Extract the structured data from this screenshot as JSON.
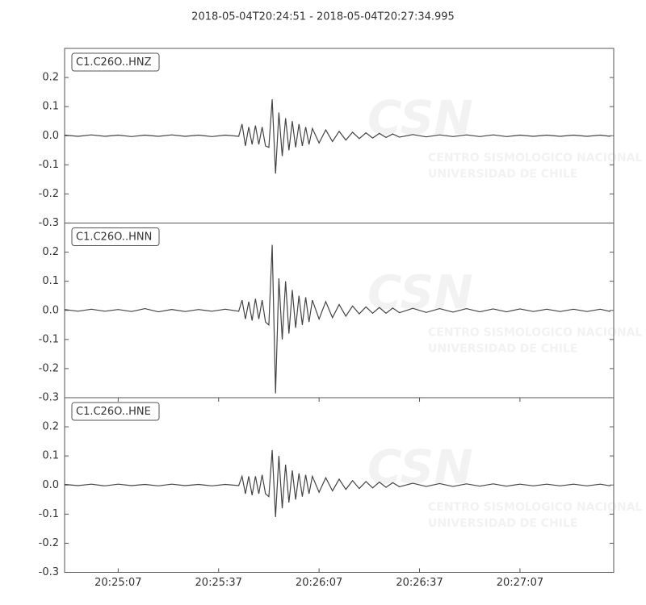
{
  "title": "2018-05-04T20:24:51  -  2018-05-04T20:27:34.995",
  "watermark": {
    "logo": "CSN",
    "lines": [
      "CENTRO SISMOLOGICO NACIONAL",
      "UNIVERSIDAD DE CHILE"
    ]
  },
  "chart_data": [
    {
      "type": "line",
      "label": "C1.C26O..HNZ",
      "color": "#444444",
      "x": [
        "20:24:51",
        "20:24:55",
        "20:24:59",
        "20:25:03",
        "20:25:07",
        "20:25:11",
        "20:25:15",
        "20:25:19",
        "20:25:23",
        "20:25:27",
        "20:25:31",
        "20:25:35",
        "20:25:39",
        "20:25:43",
        "20:25:44",
        "20:25:45",
        "20:25:46",
        "20:25:47",
        "20:25:48",
        "20:25:49",
        "20:25:50",
        "20:25:51",
        "20:25:52",
        "20:25:53",
        "20:25:54",
        "20:25:55",
        "20:25:56",
        "20:25:57",
        "20:25:58",
        "20:25:59",
        "20:26:00",
        "20:26:01",
        "20:26:02",
        "20:26:03",
        "20:26:04",
        "20:26:05",
        "20:26:07",
        "20:26:09",
        "20:26:11",
        "20:26:13",
        "20:26:15",
        "20:26:17",
        "20:26:19",
        "20:26:21",
        "20:26:23",
        "20:26:25",
        "20:26:27",
        "20:26:29",
        "20:26:31",
        "20:26:35",
        "20:26:39",
        "20:26:43",
        "20:26:47",
        "20:26:51",
        "20:26:55",
        "20:26:59",
        "20:27:03",
        "20:27:07",
        "20:27:11",
        "20:27:15",
        "20:27:19",
        "20:27:23",
        "20:27:27",
        "20:27:31",
        "20:27:34"
      ],
      "values": [
        0.002,
        -0.002,
        0.003,
        -0.002,
        0.002,
        -0.003,
        0.002,
        -0.002,
        0.003,
        -0.002,
        0.002,
        -0.003,
        0.002,
        -0.002,
        0.04,
        -0.035,
        0.03,
        -0.03,
        0.035,
        -0.03,
        0.03,
        -0.035,
        -0.04,
        0.125,
        -0.13,
        0.08,
        -0.07,
        0.06,
        -0.05,
        0.05,
        -0.04,
        0.04,
        -0.035,
        0.03,
        -0.03,
        0.025,
        -0.025,
        0.02,
        -0.02,
        0.015,
        -0.015,
        0.012,
        -0.01,
        0.01,
        -0.008,
        0.008,
        -0.006,
        0.006,
        -0.005,
        0.004,
        -0.004,
        0.003,
        -0.003,
        0.003,
        -0.003,
        0.003,
        -0.003,
        0.002,
        -0.002,
        0.002,
        -0.002,
        0.002,
        -0.002,
        0.002,
        -0.002
      ],
      "xlim": [
        "20:24:51",
        "20:27:34.995"
      ],
      "ylim": [
        -0.3,
        0.3
      ],
      "yticks": [
        -0.3,
        -0.2,
        -0.1,
        {
          "value": 0,
          "label": "0.0"
        },
        0.1,
        0.2
      ]
    },
    {
      "type": "line",
      "label": "C1.C26O..HNN",
      "color": "#444444",
      "x": [
        "20:24:51",
        "20:24:55",
        "20:24:59",
        "20:25:03",
        "20:25:07",
        "20:25:11",
        "20:25:15",
        "20:25:19",
        "20:25:23",
        "20:25:27",
        "20:25:31",
        "20:25:35",
        "20:25:39",
        "20:25:43",
        "20:25:44",
        "20:25:45",
        "20:25:46",
        "20:25:47",
        "20:25:48",
        "20:25:49",
        "20:25:50",
        "20:25:51",
        "20:25:52",
        "20:25:53",
        "20:25:54",
        "20:25:55",
        "20:25:56",
        "20:25:57",
        "20:25:58",
        "20:25:59",
        "20:26:00",
        "20:26:01",
        "20:26:02",
        "20:26:03",
        "20:26:04",
        "20:26:05",
        "20:26:07",
        "20:26:09",
        "20:26:11",
        "20:26:13",
        "20:26:15",
        "20:26:17",
        "20:26:19",
        "20:26:21",
        "20:26:23",
        "20:26:25",
        "20:26:27",
        "20:26:29",
        "20:26:31",
        "20:26:35",
        "20:26:39",
        "20:26:43",
        "20:26:47",
        "20:26:51",
        "20:26:55",
        "20:26:59",
        "20:27:03",
        "20:27:07",
        "20:27:11",
        "20:27:15",
        "20:27:19",
        "20:27:23",
        "20:27:27",
        "20:27:31",
        "20:27:34"
      ],
      "values": [
        0.003,
        -0.003,
        0.004,
        -0.003,
        0.003,
        -0.004,
        0.006,
        -0.005,
        0.003,
        -0.004,
        0.003,
        -0.003,
        0.004,
        -0.003,
        0.035,
        -0.03,
        0.03,
        -0.035,
        0.04,
        -0.03,
        0.035,
        -0.04,
        -0.05,
        0.225,
        -0.285,
        0.11,
        -0.1,
        0.1,
        -0.08,
        0.07,
        -0.06,
        0.05,
        -0.05,
        0.045,
        -0.04,
        0.035,
        -0.03,
        0.03,
        -0.025,
        0.02,
        -0.02,
        0.015,
        -0.012,
        0.012,
        -0.01,
        0.01,
        -0.01,
        0.008,
        -0.008,
        0.007,
        -0.007,
        0.006,
        -0.006,
        0.006,
        -0.005,
        0.005,
        -0.005,
        0.005,
        -0.004,
        0.004,
        -0.004,
        0.004,
        -0.004,
        0.004,
        -0.004
      ],
      "xlim": [
        "20:24:51",
        "20:27:34.995"
      ],
      "ylim": [
        -0.3,
        0.3
      ],
      "yticks": [
        -0.3,
        -0.2,
        -0.1,
        {
          "value": 0,
          "label": "0.0"
        },
        0.1,
        0.2
      ]
    },
    {
      "type": "line",
      "label": "C1.C26O..HNE",
      "color": "#444444",
      "x": [
        "20:24:51",
        "20:24:55",
        "20:24:59",
        "20:25:03",
        "20:25:07",
        "20:25:11",
        "20:25:15",
        "20:25:19",
        "20:25:23",
        "20:25:27",
        "20:25:31",
        "20:25:35",
        "20:25:39",
        "20:25:43",
        "20:25:44",
        "20:25:45",
        "20:25:46",
        "20:25:47",
        "20:25:48",
        "20:25:49",
        "20:25:50",
        "20:25:51",
        "20:25:52",
        "20:25:53",
        "20:25:54",
        "20:25:55",
        "20:25:56",
        "20:25:57",
        "20:25:58",
        "20:25:59",
        "20:26:00",
        "20:26:01",
        "20:26:02",
        "20:26:03",
        "20:26:04",
        "20:26:05",
        "20:26:07",
        "20:26:09",
        "20:26:11",
        "20:26:13",
        "20:26:15",
        "20:26:17",
        "20:26:19",
        "20:26:21",
        "20:26:23",
        "20:26:25",
        "20:26:27",
        "20:26:29",
        "20:26:31",
        "20:26:35",
        "20:26:39",
        "20:26:43",
        "20:26:47",
        "20:26:51",
        "20:26:55",
        "20:26:59",
        "20:27:03",
        "20:27:07",
        "20:27:11",
        "20:27:15",
        "20:27:19",
        "20:27:23",
        "20:27:27",
        "20:27:31",
        "20:27:34"
      ],
      "values": [
        0.002,
        -0.002,
        0.003,
        -0.003,
        0.003,
        -0.002,
        0.002,
        -0.003,
        0.003,
        -0.002,
        0.002,
        -0.003,
        0.002,
        -0.002,
        0.03,
        -0.03,
        0.03,
        -0.035,
        0.03,
        -0.03,
        0.035,
        -0.03,
        -0.04,
        0.12,
        -0.11,
        0.1,
        -0.08,
        0.07,
        -0.06,
        0.05,
        -0.05,
        0.04,
        -0.04,
        0.035,
        -0.03,
        0.03,
        -0.025,
        0.025,
        -0.02,
        0.02,
        -0.015,
        0.015,
        -0.012,
        0.012,
        -0.01,
        0.01,
        -0.008,
        0.008,
        -0.006,
        0.006,
        -0.005,
        0.005,
        -0.005,
        0.004,
        -0.004,
        0.004,
        -0.004,
        0.003,
        -0.003,
        0.003,
        -0.003,
        0.003,
        -0.003,
        0.003,
        -0.003
      ],
      "xlim": [
        "20:24:51",
        "20:27:34.995"
      ],
      "ylim": [
        -0.3,
        0.3
      ],
      "yticks": [
        -0.3,
        -0.2,
        -0.1,
        {
          "value": 0,
          "label": "0.0"
        },
        0.1,
        0.2
      ],
      "xticks": [
        "20:25:07",
        "20:25:37",
        "20:26:07",
        "20:26:37",
        "20:27:07"
      ]
    }
  ]
}
